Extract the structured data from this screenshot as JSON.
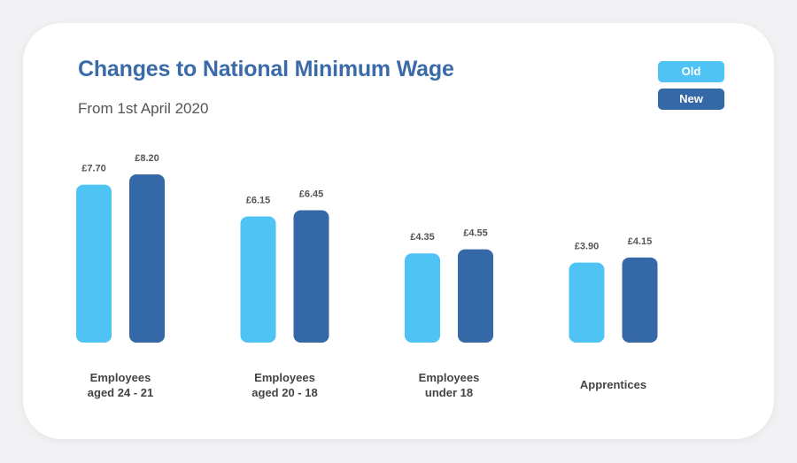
{
  "title": "Changes to National Minimum Wage",
  "subtitle": "From 1st April 2020",
  "colors": {
    "old": "#4fc3f3",
    "new": "#3568a6"
  },
  "legend": [
    {
      "label": "Old",
      "color": "#4fc3f3"
    },
    {
      "label": "New",
      "color": "#3568a6"
    }
  ],
  "chart_data": {
    "type": "bar",
    "title": "Changes to National Minimum Wage",
    "subtitle": "From 1st April 2020",
    "categories": [
      "Employees\naged 24 - 21",
      "Employees\naged 20 - 18",
      "Employees\nunder 18",
      "Apprentices"
    ],
    "series": [
      {
        "name": "Old",
        "values": [
          7.7,
          6.15,
          4.35,
          3.9
        ],
        "labels": [
          "£7.70",
          "£6.15",
          "£4.35",
          "£3.90"
        ]
      },
      {
        "name": "New",
        "values": [
          8.2,
          6.45,
          4.55,
          4.15
        ],
        "labels": [
          "£8.20",
          "£6.45",
          "£4.55",
          "£4.15"
        ]
      }
    ],
    "xlabel": "",
    "ylabel": "",
    "ylim": [
      0,
      8.2
    ],
    "grid": false,
    "legend_position": "top-right"
  }
}
